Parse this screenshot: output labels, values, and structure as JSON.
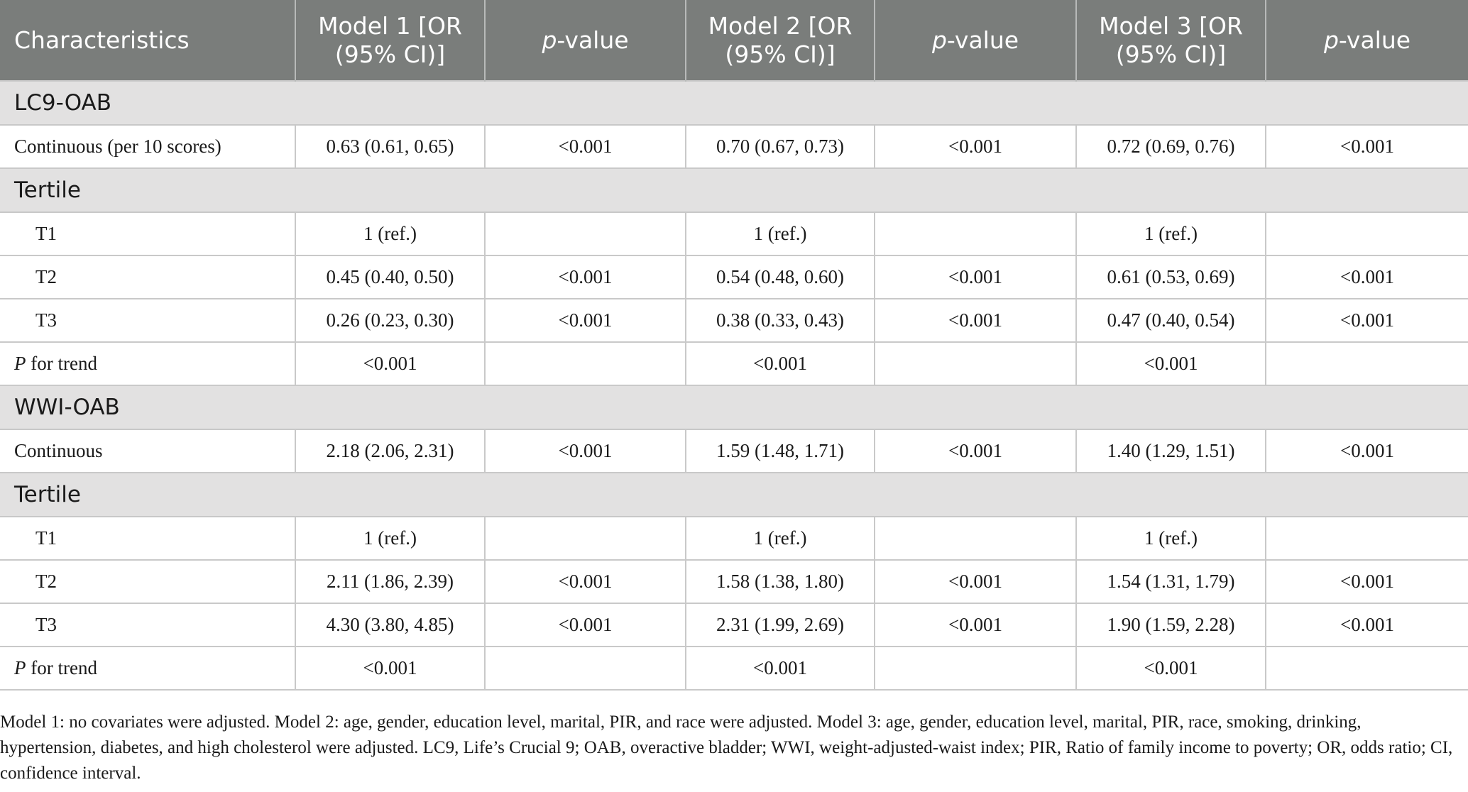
{
  "header": {
    "characteristics": "Characteristics",
    "model1": "Model 1 [OR (95% CI)]",
    "pvalue_p": "p",
    "pvalue_rest": "-value",
    "model2": "Model 2 [OR (95% CI)]",
    "model3": "Model 3 [OR (95% CI)]"
  },
  "sections": [
    {
      "title": "LC9-OAB",
      "continuous": {
        "label": "Continuous (per 10 scores)",
        "cells": [
          "0.63 (0.61, 0.65)",
          "<0.001",
          "0.70 (0.67, 0.73)",
          "<0.001",
          "0.72 (0.69, 0.76)",
          "<0.001"
        ]
      },
      "tertile_title": "Tertile",
      "tertiles": [
        {
          "label": "T1",
          "cells": [
            "1 (ref.)",
            "",
            "1 (ref.)",
            "",
            "1 (ref.)",
            ""
          ]
        },
        {
          "label": "T2",
          "cells": [
            "0.45 (0.40, 0.50)",
            "<0.001",
            "0.54 (0.48, 0.60)",
            "<0.001",
            "0.61 (0.53, 0.69)",
            "<0.001"
          ]
        },
        {
          "label": "T3",
          "cells": [
            "0.26 (0.23, 0.30)",
            "<0.001",
            "0.38 (0.33, 0.43)",
            "<0.001",
            "0.47 (0.40, 0.54)",
            "<0.001"
          ]
        }
      ],
      "trend": {
        "label_p": "P",
        "label_rest": " for trend",
        "cells": [
          "<0.001",
          "",
          "<0.001",
          "",
          "<0.001",
          ""
        ]
      }
    },
    {
      "title": "WWI-OAB",
      "continuous": {
        "label": "Continuous",
        "cells": [
          "2.18 (2.06, 2.31)",
          "<0.001",
          "1.59 (1.48, 1.71)",
          "<0.001",
          "1.40 (1.29, 1.51)",
          "<0.001"
        ]
      },
      "tertile_title": "Tertile",
      "tertiles": [
        {
          "label": "T1",
          "cells": [
            "1 (ref.)",
            "",
            "1 (ref.)",
            "",
            "1 (ref.)",
            ""
          ]
        },
        {
          "label": "T2",
          "cells": [
            "2.11 (1.86, 2.39)",
            "<0.001",
            "1.58 (1.38, 1.80)",
            "<0.001",
            "1.54 (1.31, 1.79)",
            "<0.001"
          ]
        },
        {
          "label": "T3",
          "cells": [
            "4.30 (3.80, 4.85)",
            "<0.001",
            "2.31 (1.99, 2.69)",
            "<0.001",
            "1.90 (1.59, 2.28)",
            "<0.001"
          ]
        }
      ],
      "trend": {
        "label_p": "P",
        "label_rest": " for trend",
        "cells": [
          "<0.001",
          "",
          "<0.001",
          "",
          "<0.001",
          ""
        ]
      }
    }
  ],
  "footnote": "Model 1: no covariates were adjusted. Model 2: age, gender, education level, marital, PIR, and race were adjusted. Model 3: age, gender, education level, marital, PIR, race, smoking, drinking, hypertension, diabetes, and high cholesterol were adjusted. LC9, Life’s Crucial 9; OAB, overactive bladder; WWI, weight-adjusted-waist index; PIR, Ratio of family income to poverty; OR, odds ratio; CI, confidence interval."
}
